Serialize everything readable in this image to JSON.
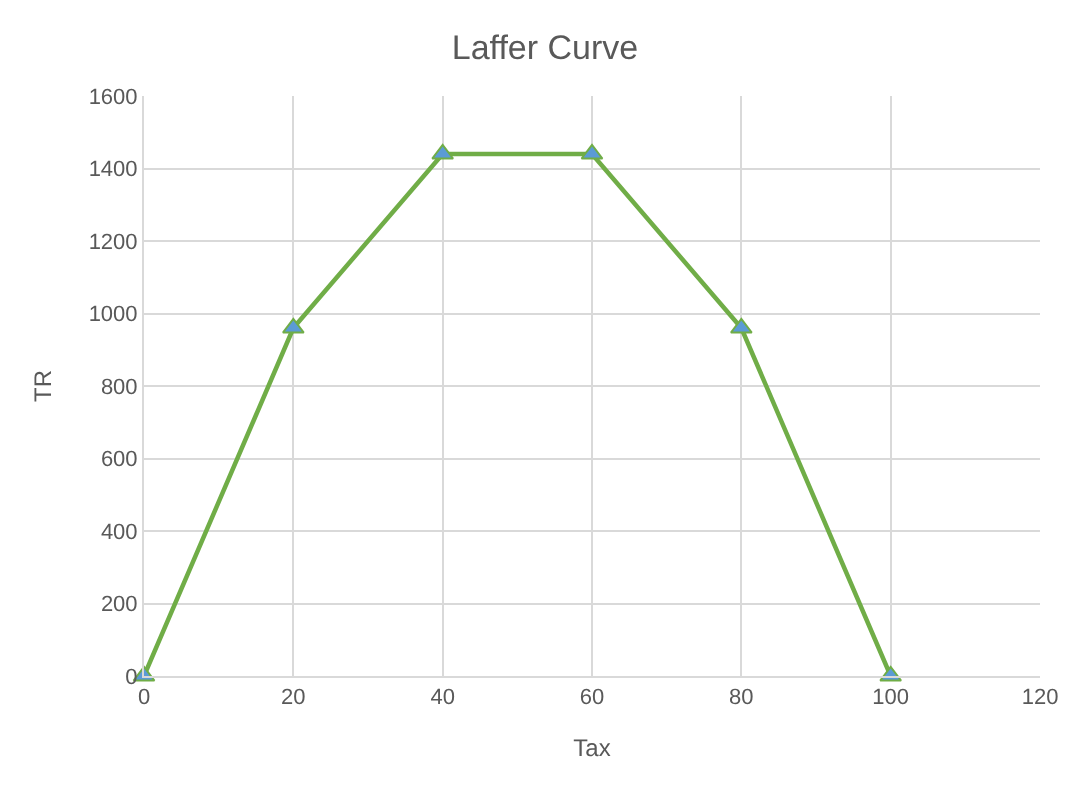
{
  "chart_data": {
    "type": "line",
    "title": "Laffer Curve",
    "xlabel": "Tax",
    "ylabel": "TR",
    "x": [
      0,
      20,
      40,
      60,
      80,
      100
    ],
    "series": [
      {
        "color": "#70ad47",
        "values": [
          0,
          960,
          1440,
          1440,
          960,
          0
        ]
      }
    ],
    "xlim": [
      0,
      120
    ],
    "xticks": [
      0,
      20,
      40,
      60,
      80,
      100,
      120
    ],
    "ylim": [
      0,
      1600
    ],
    "yticks": [
      0,
      200,
      400,
      600,
      800,
      1000,
      1200,
      1400,
      1600
    ],
    "grid": true,
    "marker": "triangle",
    "line_style": "solid"
  }
}
